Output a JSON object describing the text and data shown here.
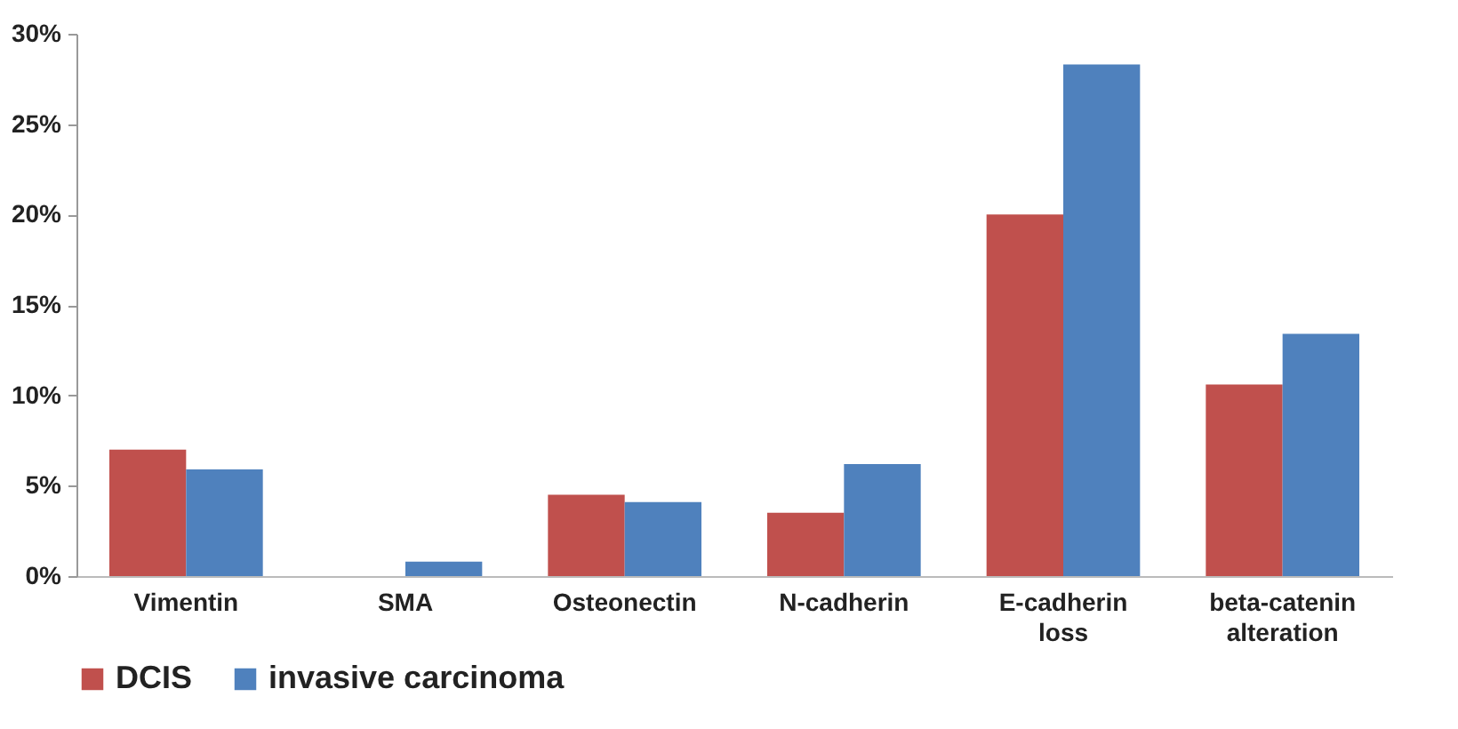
{
  "chart_data": {
    "type": "bar",
    "categories": [
      "Vimentin",
      "SMA",
      "Osteonectin",
      "N-cadherin",
      "E-cadherin loss",
      "beta-catenin alteration"
    ],
    "series": [
      {
        "name": "DCIS",
        "color": "#c0504d",
        "values": [
          7.0,
          0,
          4.5,
          3.5,
          20.0,
          10.6
        ]
      },
      {
        "name": "invasive carcinoma",
        "color": "#4f81bd",
        "values": [
          5.9,
          0.8,
          4.1,
          6.2,
          28.3,
          13.4
        ]
      }
    ],
    "ylim": [
      0,
      30
    ],
    "yticks": [
      {
        "value": 0,
        "label": "0%"
      },
      {
        "value": 5,
        "label": "5%"
      },
      {
        "value": 10,
        "label": "10%"
      },
      {
        "value": 15,
        "label": "15%"
      },
      {
        "value": 20,
        "label": "20%"
      },
      {
        "value": 25,
        "label": "25%"
      },
      {
        "value": 30,
        "label": "30%"
      }
    ],
    "grid": false,
    "legend": "bottom"
  }
}
